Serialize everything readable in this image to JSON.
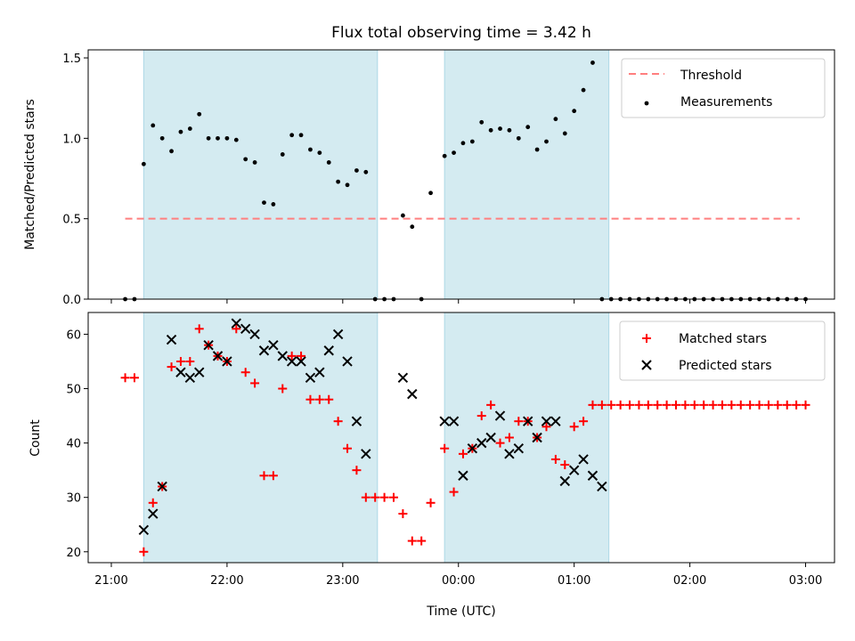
{
  "chart_data": {
    "type": "scatter",
    "title": "Flux total observing time = 3.42 h",
    "xlabel": "Time (UTC)",
    "x_ticks": [
      "21:00",
      "22:00",
      "23:00",
      "00:00",
      "01:00",
      "02:00",
      "03:00"
    ],
    "x_tick_hours": [
      21,
      22,
      23,
      24,
      25,
      26,
      27
    ],
    "xlim_hours": [
      20.8,
      27.25
    ],
    "observing_windows_hours": [
      [
        21.28,
        23.3
      ],
      [
        23.88,
        25.3
      ]
    ],
    "colors": {
      "window": "#d4ebf1",
      "threshold": "#ff7f7f",
      "matched": "#ff0000",
      "predicted": "#000000"
    },
    "top_panel": {
      "ylabel": "Matched/Predicted stars",
      "ylim": [
        0,
        1.55
      ],
      "y_ticks": [
        0.0,
        0.5,
        1.0,
        1.5
      ],
      "y_tick_labels": [
        "0.0",
        "0.5",
        "1.0",
        "1.5"
      ],
      "legend": [
        "Threshold",
        "Measurements"
      ],
      "threshold": {
        "y": 0.5,
        "x_from_hours": 21.12,
        "x_to_hours": 26.95
      },
      "measurements": {
        "x_hours": [
          21.12,
          21.2,
          21.28,
          21.36,
          21.44,
          21.52,
          21.6,
          21.68,
          21.76,
          21.84,
          21.92,
          22.0,
          22.08,
          22.16,
          22.24,
          22.32,
          22.4,
          22.48,
          22.56,
          22.64,
          22.72,
          22.8,
          22.88,
          22.96,
          23.04,
          23.12,
          23.2,
          23.28,
          23.36,
          23.44,
          23.52,
          23.6,
          23.68,
          23.76,
          23.88,
          23.96,
          24.04,
          24.12,
          24.2,
          24.28,
          24.36,
          24.44,
          24.52,
          24.6,
          24.68,
          24.76,
          24.84,
          24.92,
          25.0,
          25.08,
          25.16,
          25.24,
          25.32,
          25.4,
          25.48,
          25.56,
          25.64,
          25.72,
          25.8,
          25.88,
          25.96,
          26.04,
          26.12,
          26.2,
          26.28,
          26.36,
          26.44,
          26.52,
          26.6,
          26.68,
          26.76,
          26.84,
          26.92,
          27.0
        ],
        "y": [
          0,
          0,
          0.84,
          1.08,
          1.0,
          0.92,
          1.04,
          1.06,
          1.15,
          1.0,
          1.0,
          1.0,
          0.99,
          0.87,
          0.85,
          0.6,
          0.59,
          0.9,
          1.02,
          1.02,
          0.93,
          0.91,
          0.85,
          0.73,
          0.71,
          0.8,
          0.79,
          0,
          0,
          0,
          0.52,
          0.45,
          0,
          0.66,
          0.89,
          0.91,
          0.97,
          0.98,
          1.1,
          1.05,
          1.06,
          1.05,
          1.0,
          1.07,
          0.93,
          0.98,
          1.12,
          1.03,
          1.17,
          1.3,
          1.47,
          0,
          0,
          0,
          0,
          0,
          0,
          0,
          0,
          0,
          0,
          0,
          0,
          0,
          0,
          0,
          0,
          0,
          0,
          0,
          0,
          0,
          0,
          0
        ]
      }
    },
    "bottom_panel": {
      "ylabel": "Count",
      "ylim": [
        18,
        64
      ],
      "y_ticks": [
        20,
        30,
        40,
        50,
        60
      ],
      "y_tick_labels": [
        "20",
        "30",
        "40",
        "50",
        "60"
      ],
      "legend": [
        "Matched stars",
        "Predicted stars"
      ],
      "series": [
        {
          "name": "Matched stars",
          "marker": "plus",
          "x_hours": [
            21.12,
            21.2,
            21.28,
            21.36,
            21.44,
            21.52,
            21.6,
            21.68,
            21.76,
            21.84,
            21.92,
            22.0,
            22.08,
            22.16,
            22.24,
            22.32,
            22.4,
            22.48,
            22.56,
            22.64,
            22.72,
            22.8,
            22.88,
            22.96,
            23.04,
            23.12,
            23.2,
            23.28,
            23.36,
            23.44,
            23.52,
            23.6,
            23.68,
            23.76,
            23.88,
            23.96,
            24.04,
            24.12,
            24.2,
            24.28,
            24.36,
            24.44,
            24.52,
            24.6,
            24.68,
            24.76,
            24.84,
            24.92,
            25.0,
            25.08,
            25.16,
            25.24,
            25.32,
            25.4,
            25.48,
            25.56,
            25.64,
            25.72,
            25.8,
            25.88,
            25.96,
            26.04,
            26.12,
            26.2,
            26.28,
            26.36,
            26.44,
            26.52,
            26.6,
            26.68,
            26.76,
            26.84,
            26.92,
            27.0
          ],
          "y": [
            52,
            52,
            20,
            29,
            32,
            54,
            55,
            55,
            61,
            58,
            56,
            55,
            61,
            53,
            51,
            34,
            34,
            50,
            56,
            56,
            48,
            48,
            48,
            44,
            39,
            35,
            30,
            30,
            30,
            30,
            27,
            22,
            22,
            29,
            39,
            31,
            38,
            39,
            45,
            47,
            40,
            41,
            44,
            44,
            41,
            43,
            37,
            36,
            43,
            44,
            47,
            47,
            47,
            47,
            47,
            47,
            47,
            47,
            47,
            47,
            47,
            47,
            47,
            47,
            47,
            47,
            47,
            47,
            47,
            47,
            47,
            47,
            47,
            47
          ]
        },
        {
          "name": "Predicted stars",
          "marker": "x",
          "x_hours": [
            21.28,
            21.36,
            21.44,
            21.52,
            21.6,
            21.68,
            21.76,
            21.84,
            21.92,
            22.0,
            22.08,
            22.16,
            22.24,
            22.32,
            22.4,
            22.48,
            22.56,
            22.64,
            22.72,
            22.8,
            22.88,
            22.96,
            23.04,
            23.12,
            23.2,
            23.52,
            23.6,
            23.88,
            23.96,
            24.04,
            24.12,
            24.2,
            24.28,
            24.36,
            24.44,
            24.52,
            24.6,
            24.68,
            24.76,
            24.84,
            24.92,
            25.0,
            25.08,
            25.16,
            25.24
          ],
          "y": [
            24,
            27,
            32,
            59,
            53,
            52,
            53,
            58,
            56,
            55,
            62,
            61,
            60,
            57,
            58,
            56,
            55,
            55,
            52,
            53,
            57,
            60,
            55,
            44,
            38,
            52,
            49,
            44,
            44,
            34,
            39,
            40,
            41,
            45,
            38,
            39,
            44,
            41,
            44,
            44,
            33,
            35,
            37,
            34,
            32
          ]
        }
      ]
    }
  }
}
